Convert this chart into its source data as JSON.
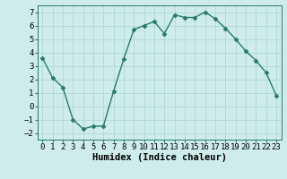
{
  "x": [
    0,
    1,
    2,
    3,
    4,
    5,
    6,
    7,
    8,
    9,
    10,
    11,
    12,
    13,
    14,
    15,
    16,
    17,
    18,
    19,
    20,
    21,
    22,
    23
  ],
  "y": [
    3.6,
    2.1,
    1.4,
    -1.0,
    -1.7,
    -1.5,
    -1.5,
    1.1,
    3.5,
    5.7,
    6.0,
    6.3,
    5.4,
    6.8,
    6.6,
    6.6,
    7.0,
    6.5,
    5.8,
    5.0,
    4.1,
    3.4,
    2.5,
    0.8
  ],
  "line_color": "#2a7a6a",
  "marker": "D",
  "marker_size": 2.5,
  "bg_color": "#ceecea",
  "grid_color": "#b0d8d4",
  "xlabel": "Humidex (Indice chaleur)",
  "ylim": [
    -2.5,
    7.5
  ],
  "xlim": [
    -0.5,
    23.5
  ],
  "yticks": [
    -2,
    -1,
    0,
    1,
    2,
    3,
    4,
    5,
    6,
    7
  ],
  "xticks": [
    0,
    1,
    2,
    3,
    4,
    5,
    6,
    7,
    8,
    9,
    10,
    11,
    12,
    13,
    14,
    15,
    16,
    17,
    18,
    19,
    20,
    21,
    22,
    23
  ],
  "tick_fontsize": 6.5,
  "xlabel_fontsize": 7.5,
  "linewidth": 1.0
}
